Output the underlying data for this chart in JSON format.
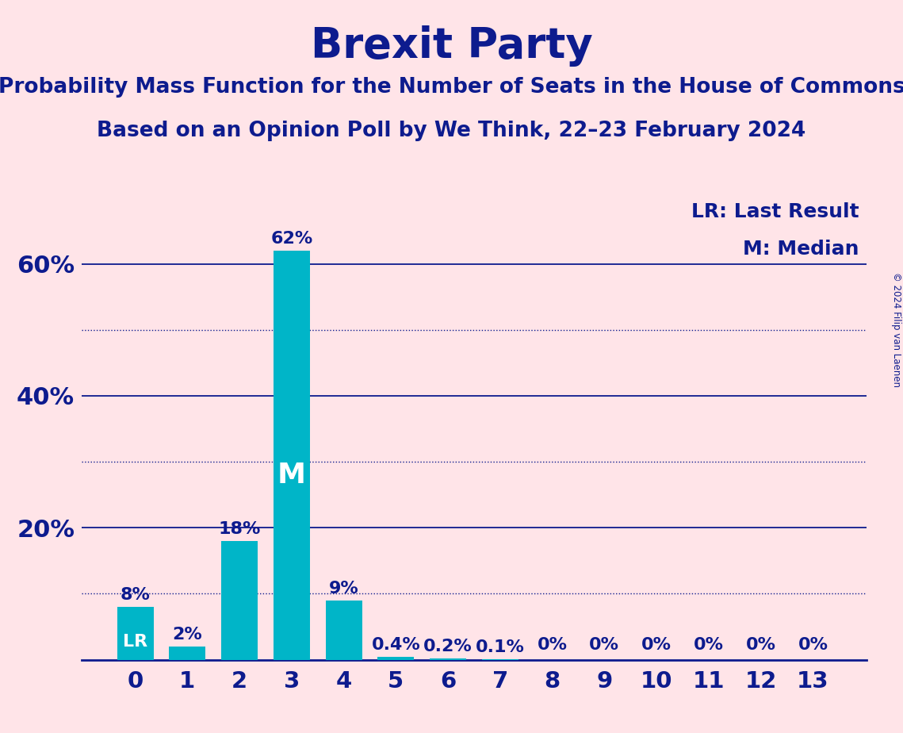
{
  "title": "Brexit Party",
  "subtitle1": "Probability Mass Function for the Number of Seats in the House of Commons",
  "subtitle2": "Based on an Opinion Poll by We Think, 22–23 February 2024",
  "copyright": "© 2024 Filip van Laenen",
  "categories": [
    0,
    1,
    2,
    3,
    4,
    5,
    6,
    7,
    8,
    9,
    10,
    11,
    12,
    13
  ],
  "values": [
    8,
    2,
    18,
    62,
    9,
    0.4,
    0.2,
    0.1,
    0,
    0,
    0,
    0,
    0,
    0
  ],
  "labels": [
    "8%",
    "2%",
    "18%",
    "62%",
    "9%",
    "0.4%",
    "0.2%",
    "0.1%",
    "0%",
    "0%",
    "0%",
    "0%",
    "0%",
    "0%"
  ],
  "bar_color": "#00B5C8",
  "background_color": "#FFE4E8",
  "text_color": "#0D1B8E",
  "title_fontsize": 38,
  "subtitle_fontsize": 19,
  "label_fontsize": 16,
  "tick_fontsize": 21,
  "ytick_fontsize": 22,
  "legend_fontsize": 18,
  "ylim": [
    0,
    70
  ],
  "yticks": [
    20,
    40,
    60
  ],
  "ytick_labels": [
    "20%",
    "40%",
    "60%"
  ],
  "solid_grid_lines": [
    20,
    40,
    60
  ],
  "dotted_grid_lines": [
    10,
    30,
    50
  ],
  "median_bar": 3,
  "lr_bar": 0,
  "legend_lr": "LR: Last Result",
  "legend_m": "M: Median"
}
